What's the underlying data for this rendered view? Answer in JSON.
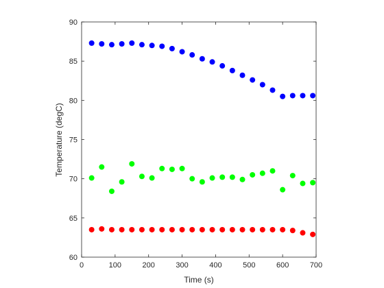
{
  "chart_data": {
    "type": "scatter",
    "title": "",
    "xlabel": "Time (s)",
    "ylabel": "Temperature (degC)",
    "xlim": [
      0,
      700
    ],
    "ylim": [
      60,
      90
    ],
    "xticks": [
      0,
      100,
      200,
      300,
      400,
      500,
      600,
      700
    ],
    "yticks": [
      60,
      65,
      70,
      75,
      80,
      85,
      90
    ],
    "grid": false,
    "x": [
      30,
      60,
      90,
      120,
      150,
      180,
      210,
      240,
      270,
      300,
      330,
      360,
      390,
      420,
      450,
      480,
      510,
      540,
      570,
      600,
      630,
      660,
      690
    ],
    "series": [
      {
        "color": "#0000ff",
        "values": [
          87.3,
          87.2,
          87.1,
          87.2,
          87.3,
          87.1,
          87.0,
          86.9,
          86.6,
          86.2,
          85.8,
          85.3,
          84.9,
          84.4,
          83.8,
          83.2,
          82.6,
          82.0,
          81.3,
          80.5,
          80.6,
          80.6,
          80.6
        ]
      },
      {
        "color": "#00ff00",
        "values": [
          70.1,
          71.5,
          68.4,
          69.6,
          71.9,
          70.3,
          70.1,
          71.3,
          71.2,
          71.3,
          70.0,
          69.6,
          70.1,
          70.2,
          70.2,
          69.9,
          70.5,
          70.7,
          71.0,
          68.6,
          70.4,
          69.4,
          69.5
        ]
      },
      {
        "color": "#ff0000",
        "values": [
          63.5,
          63.6,
          63.5,
          63.5,
          63.5,
          63.5,
          63.5,
          63.5,
          63.5,
          63.5,
          63.5,
          63.5,
          63.5,
          63.5,
          63.5,
          63.5,
          63.5,
          63.5,
          63.5,
          63.5,
          63.4,
          63.1,
          62.9
        ]
      }
    ]
  }
}
